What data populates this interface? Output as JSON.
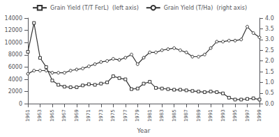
{
  "chart_data": {
    "type": "line",
    "x": [
      1961,
      1962,
      1963,
      1964,
      1965,
      1966,
      1967,
      1968,
      1969,
      1970,
      1971,
      1972,
      1973,
      1974,
      1975,
      1976,
      1977,
      1978,
      1979,
      1980,
      1981,
      1982,
      1983,
      1984,
      1985,
      1986,
      1987,
      1988,
      1989,
      1990,
      1991,
      1992,
      1993,
      1994,
      1995,
      1996,
      1997,
      1998,
      1999
    ],
    "series": [
      {
        "name": "Grain Yield (T/T FerL)  (left axis)",
        "color": "#333333",
        "marker": "square",
        "line_style": "solid",
        "values": [
          8500,
          13200,
          7500,
          6000,
          3800,
          3100,
          2800,
          2700,
          2700,
          3000,
          3200,
          3100,
          3300,
          3500,
          4500,
          4200,
          4000,
          2400,
          2500,
          3300,
          3600,
          2600,
          2500,
          2400,
          2300,
          2300,
          2200,
          2100,
          2000,
          1900,
          2000,
          1900,
          1700,
          1000,
          700,
          700,
          800,
          900,
          700
        ]
      },
      {
        "name": "Grain Yield (T/Ha)  (right axis)",
        "color": "#333333",
        "marker": "circle",
        "line_style": "solid",
        "axis": "y2",
        "values": [
          1.4,
          1.55,
          1.55,
          1.55,
          1.45,
          1.45,
          1.45,
          1.55,
          1.6,
          1.65,
          1.75,
          1.85,
          1.95,
          2.0,
          2.1,
          2.05,
          2.15,
          2.3,
          1.85,
          2.15,
          2.4,
          2.4,
          2.5,
          2.55,
          2.6,
          2.5,
          2.4,
          2.2,
          2.2,
          2.3,
          2.6,
          2.9,
          2.9,
          2.95,
          2.95,
          3.0,
          3.6,
          3.3,
          3.1
        ]
      }
    ],
    "xlabel": "Year",
    "xlim": [
      1961,
      1999
    ],
    "xticks": [
      1961,
      1963,
      1965,
      1967,
      1969,
      1971,
      1973,
      1975,
      1977,
      1979,
      1981,
      1983,
      1985,
      1987,
      1989,
      1991,
      1993,
      1995,
      1997,
      1999
    ],
    "ylim": [
      0,
      14000
    ],
    "yticks": [
      0,
      2000,
      4000,
      6000,
      8000,
      10000,
      12000,
      14000
    ],
    "y2lim": [
      0,
      4
    ],
    "y2ticks": [
      {
        "value": 0,
        "label": "0.0"
      },
      0.5,
      {
        "value": 1,
        "label": "1.0"
      },
      1.5,
      {
        "value": 2,
        "label": "2.0"
      },
      2.5,
      {
        "value": 3,
        "label": "3.0"
      },
      3.5,
      {
        "value": 4,
        "label": "4.0"
      }
    ],
    "grid": false,
    "legend": "upper center"
  }
}
